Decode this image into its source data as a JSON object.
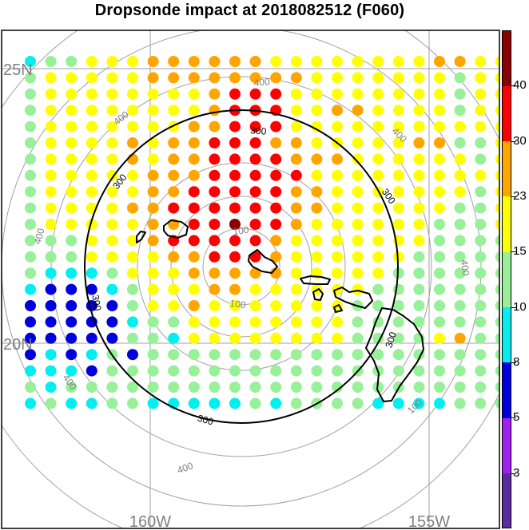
{
  "title": "Dropsonde impact at 2018082512 (F060)",
  "map": {
    "lat_labels": [
      "25N",
      "20N"
    ],
    "lon_labels": [
      "160W",
      "155W"
    ],
    "range_ring_labels": {
      "inner": "100",
      "bold": "300",
      "outer": "400"
    },
    "islands": [
      "Kauai",
      "Oahu",
      "Molokai",
      "Maui",
      "Lanai",
      "Hawaii"
    ]
  },
  "colorbar": {
    "levels": [
      "3",
      "5",
      "8",
      "10",
      "15",
      "23",
      "30",
      "40"
    ],
    "colors": [
      "#5a2ca0",
      "#a020f0",
      "#0000dd",
      "#00f0f0",
      "#98f098",
      "#ffff00",
      "#ffa500",
      "#ff0000",
      "#8b0000"
    ]
  },
  "colors": {
    "grid": "#a0a0a0",
    "range_ring": "#a0a0a0",
    "bold_ring": "#000000",
    "coast": "#000000"
  },
  "chart_data": {
    "type": "scatter",
    "title": "Dropsonde impact at 2018082512 (F060)",
    "levels": [
      3,
      5,
      8,
      10,
      15,
      23,
      30,
      40
    ],
    "value_class_legend": "0=<3,1=3-5,2=5-8,3=8-10,4=10-15,5=15-23,6=23-30,7=30-40,8=>40",
    "rows": [
      "344555666666555555556655",
      "455555666666665555555455",
      "455555555677755555555455",
      "455555555677755665555455",
      "455555556677755555555555",
      "455556566777665555566445",
      "455556566777766655555545",
      "455555666777775555555555",
      "455555667777766555555545",
      "455556677777766555555445",
      "455555667787765555554445",
      "444555677777655555554444",
      "444555566777655555544444",
      "433345556666655555444444",
      "322234555665555554444444",
      "222224556555555544444444",
      "222223445555555544444444",
      "222224435555555544445644",
      "232342444444444444444444",
      "333244444444444444444444",
      "434444444444444444444444",
      "343344333334344443333444"
    ]
  }
}
